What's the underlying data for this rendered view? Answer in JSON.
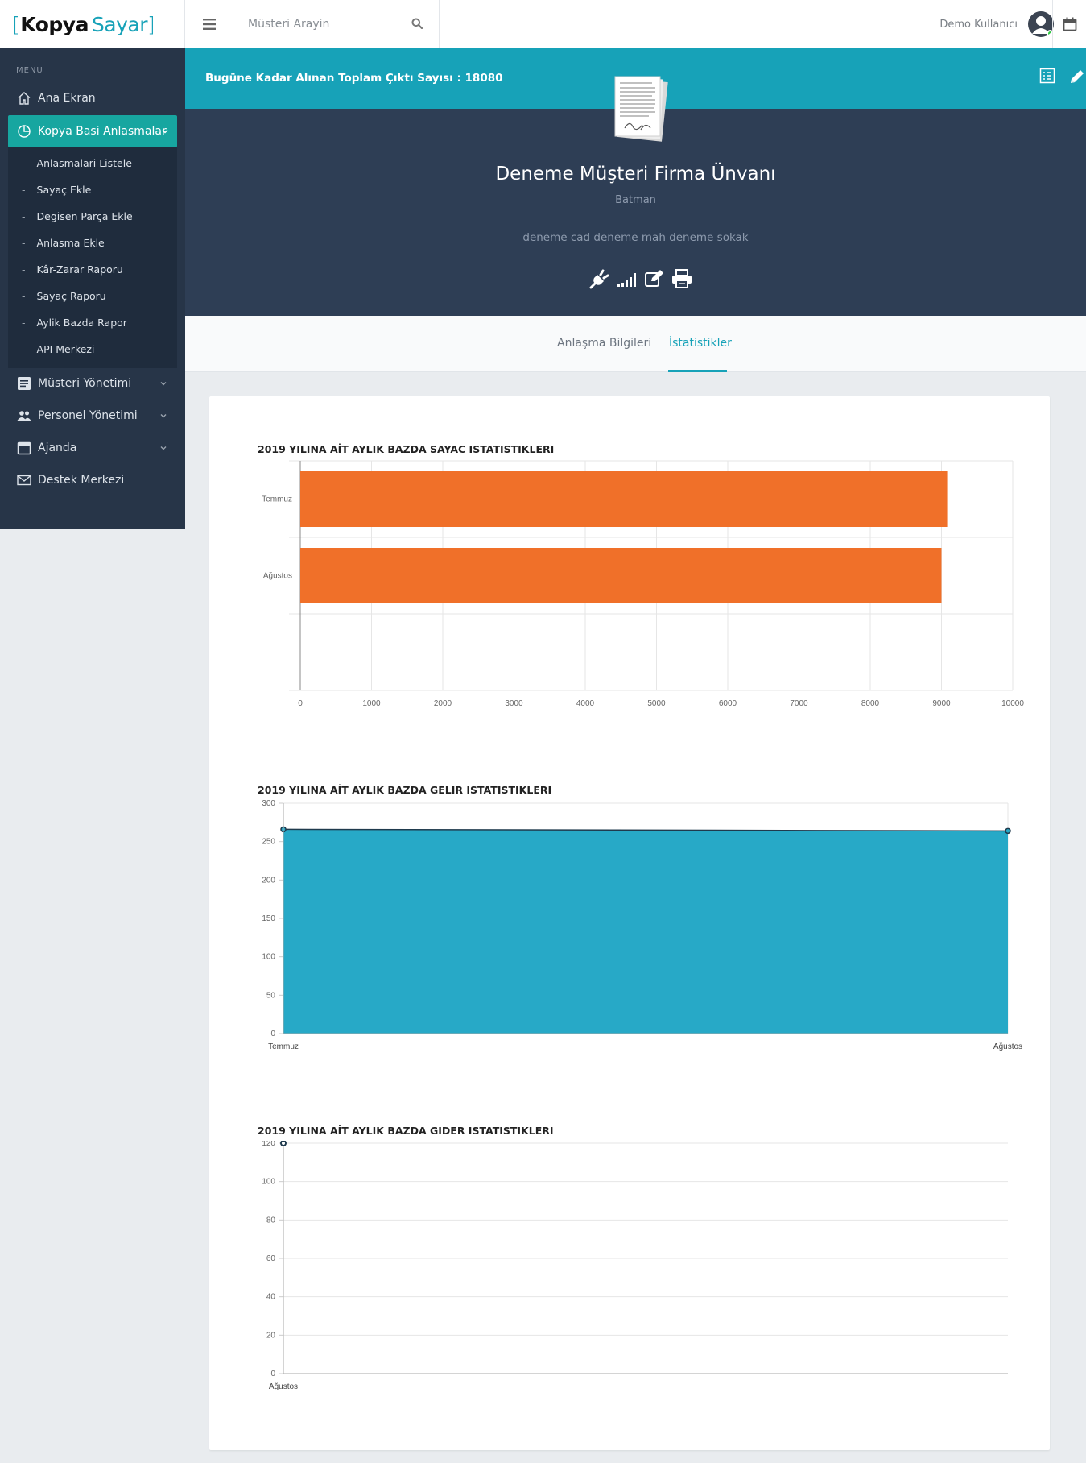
{
  "app": {
    "logo_left_bracket": "[",
    "logo_part1": "Kopya",
    "logo_part2": "Sayar",
    "logo_right_bracket": "]"
  },
  "header": {
    "search_placeholder": "Müsteri Arayin",
    "user_name": "Demo Kullanıcı"
  },
  "sidebar": {
    "menu_title": "MENU",
    "items": [
      {
        "label": "Ana Ekran",
        "icon": "home-icon"
      },
      {
        "label": "Kopya Basi Anlasmalar",
        "icon": "chart-pie-icon",
        "active": true
      },
      {
        "label": "Müsteri Yönetimi",
        "icon": "list-icon"
      },
      {
        "label": "Personel Yönetimi",
        "icon": "people-icon"
      },
      {
        "label": "Ajanda",
        "icon": "calendar-icon"
      },
      {
        "label": "Destek Merkezi",
        "icon": "envelope-icon"
      }
    ],
    "submenu": [
      "Anlasmalari Listele",
      "Sayaç Ekle",
      "Degisen Parça Ekle",
      "Anlasma Ekle",
      "Kâr-Zarar Raporu",
      "Sayaç Raporu",
      "Aylik Bazda Rapor",
      "API Merkezi"
    ],
    "submenu_dash": "-"
  },
  "banner": {
    "total_text": "Bugüne Kadar Alınan Toplam Çıktı Sayısı : 18080"
  },
  "profile": {
    "company": "Deneme Müşteri Firma Ünvanı",
    "city": "Batman",
    "address": "deneme cad deneme mah deneme sokak"
  },
  "tabs": [
    {
      "label": "Anlaşma Bilgileri",
      "active": false
    },
    {
      "label": "İstatistikler",
      "active": true
    }
  ],
  "colors": {
    "accent": "#17a2b8",
    "sidebar_bg": "#273548",
    "active_menu": "#17a6a0",
    "bar": "#f07029",
    "area": "#27a9c7"
  },
  "chart_data": [
    {
      "type": "bar",
      "orientation": "horizontal",
      "title": "2019 YILINA AİT AYLIK BAZDA SAYAC ISTATISTIKLERI",
      "categories": [
        "Temmuz",
        "Ağustos"
      ],
      "values": [
        9080,
        9000
      ],
      "xlim": [
        0,
        10000
      ],
      "x_ticks": [
        "0",
        "1000",
        "2000",
        "3000",
        "4000",
        "5000",
        "6000",
        "7000",
        "8000",
        "9000",
        "10000"
      ],
      "grid": true,
      "color": "#f07029"
    },
    {
      "type": "area",
      "title": "2019 YILINA AİT AYLIK BAZDA GELIR ISTATISTIKLERI",
      "categories": [
        "Temmuz",
        "Ağustos"
      ],
      "values": [
        266,
        264
      ],
      "ylim": [
        0,
        300
      ],
      "y_ticks": [
        "0",
        "50",
        "100",
        "150",
        "200",
        "250",
        "300"
      ],
      "grid": false,
      "color": "#27a9c7"
    },
    {
      "type": "line",
      "title": "2019 YILINA AİT AYLIK BAZDA GIDER ISTATISTIKLERI",
      "categories": [
        "Ağustos"
      ],
      "values": [
        120
      ],
      "ylim": [
        0,
        120
      ],
      "y_ticks": [
        "0",
        "20",
        "40",
        "60",
        "80",
        "100",
        "120"
      ],
      "grid": true
    }
  ]
}
